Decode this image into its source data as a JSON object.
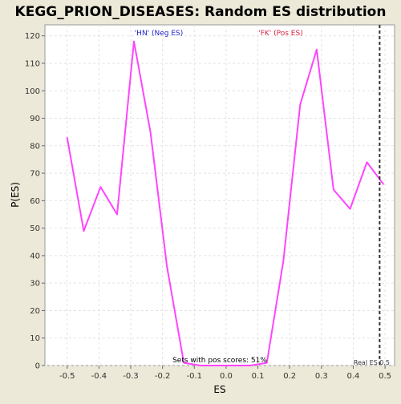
{
  "chart_data": {
    "type": "line",
    "title": "KEGG_PRION_DISEASES: Random ES distribution",
    "xlabel": "ES",
    "ylabel": "P(ES)",
    "xlim": [
      -0.57,
      0.53
    ],
    "ylim": [
      0,
      124
    ],
    "x_ticks": [
      -0.5,
      -0.4,
      -0.3,
      -0.2,
      -0.1,
      0.0,
      0.1,
      0.2,
      0.3,
      0.4,
      0.5
    ],
    "x_tick_labels": [
      "-0.5",
      "-0.4",
      "-0.3",
      "-0.2",
      "-0.1",
      "0.0",
      "0.1",
      "0.2",
      "0.3",
      "0.4",
      "0.5"
    ],
    "y_ticks": [
      0,
      10,
      20,
      30,
      40,
      50,
      60,
      70,
      80,
      90,
      100,
      110,
      120
    ],
    "y_tick_labels": [
      "0",
      "10",
      "20",
      "30",
      "40",
      "50",
      "60",
      "70",
      "80",
      "90",
      "100",
      "110",
      "120"
    ],
    "grid": true,
    "series": [
      {
        "color": "#ff44ff",
        "points": [
          [
            -0.5,
            83
          ],
          [
            -0.448,
            49
          ],
          [
            -0.395,
            65
          ],
          [
            -0.343,
            55
          ],
          [
            -0.29,
            118
          ],
          [
            -0.238,
            85
          ],
          [
            -0.186,
            36
          ],
          [
            -0.133,
            1
          ],
          [
            -0.081,
            0
          ],
          [
            -0.029,
            0
          ],
          [
            0.024,
            0
          ],
          [
            0.076,
            0
          ],
          [
            0.128,
            1
          ],
          [
            0.18,
            38
          ],
          [
            0.233,
            95
          ],
          [
            0.285,
            115
          ],
          [
            0.338,
            64
          ],
          [
            0.39,
            57
          ],
          [
            0.443,
            74
          ],
          [
            0.495,
            66
          ]
        ]
      }
    ],
    "annotations": {
      "neg_label": "'HN' (Neg ES)",
      "neg_color": "#2222cc",
      "pos_label": "'FK' (Pos ES)",
      "pos_color": "#dd2244",
      "pos_scores": "Sets with pos scores: 51%",
      "real_es_label": "Real ES 0.5",
      "real_es_value": 0.483
    }
  }
}
